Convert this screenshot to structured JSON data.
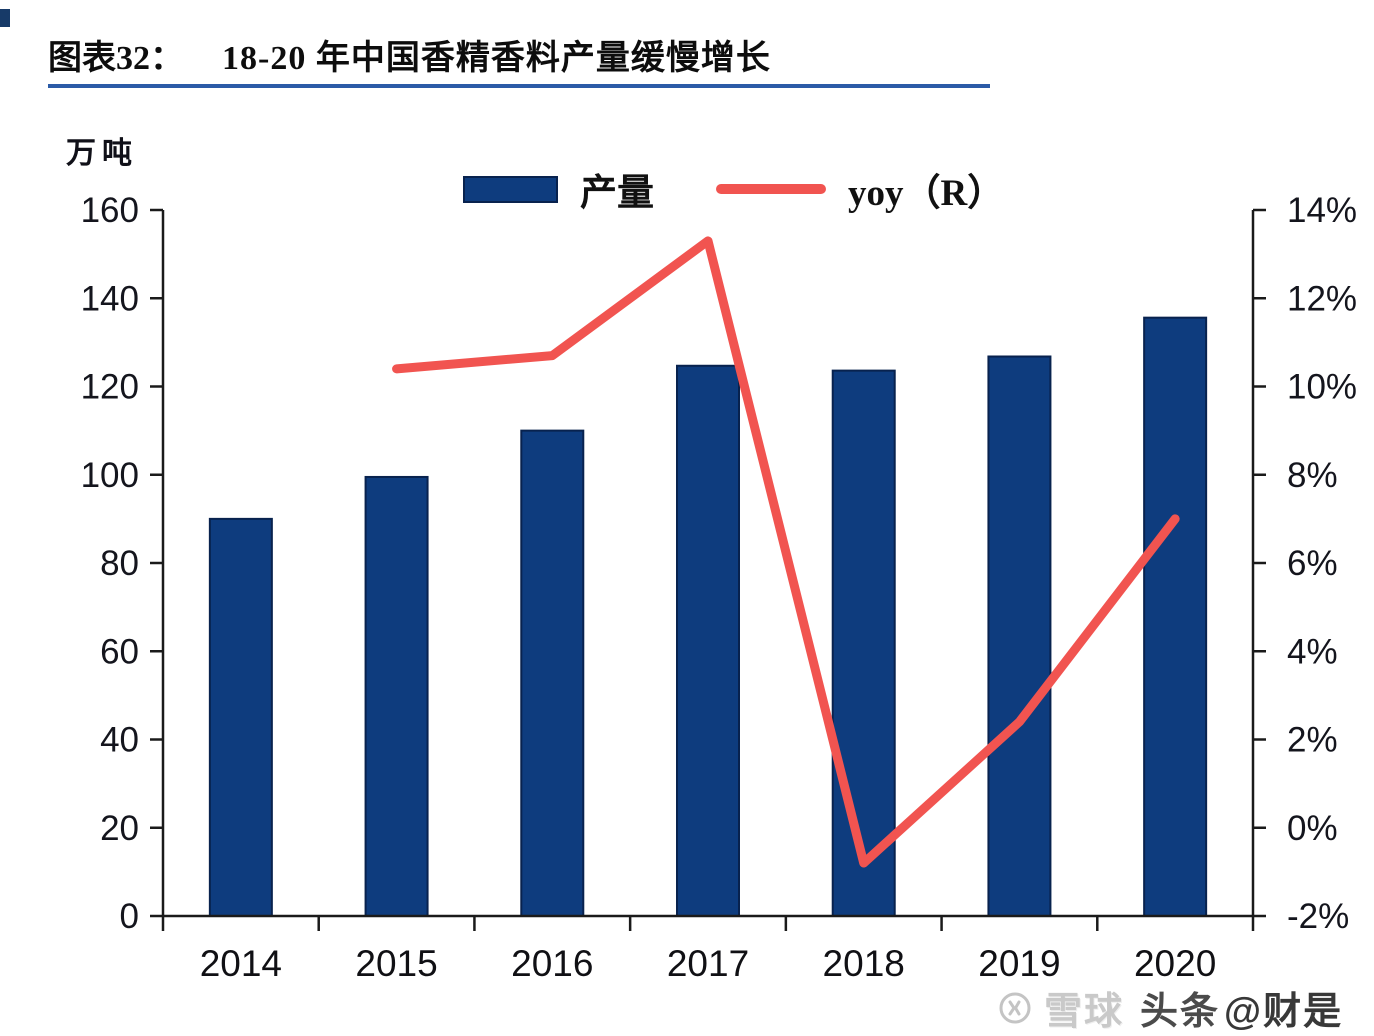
{
  "header": {
    "tag": "图表32：",
    "title": "18-20 年中国香精香料产量缓慢增长"
  },
  "chart_data": {
    "type": "bar",
    "title": "18-20 年中国香精香料产量缓慢增长",
    "categories": [
      "2014",
      "2015",
      "2016",
      "2017",
      "2018",
      "2019",
      "2020"
    ],
    "series": [
      {
        "name": "产量",
        "type": "bar",
        "axis": "left",
        "color": "#0e3c7e",
        "border_color": "#08224e",
        "values": [
          90,
          99.5,
          110,
          124.7,
          123.6,
          126.8,
          135.6
        ]
      },
      {
        "name": "yoy（R）",
        "type": "line",
        "axis": "right",
        "color": "#f15450",
        "unit": "%",
        "values": [
          null,
          10.4,
          10.7,
          13.3,
          -0.8,
          2.4,
          7.0
        ]
      }
    ],
    "left_axis": {
      "label": "万吨",
      "min": 0,
      "max": 160,
      "step": 20,
      "tick_labels": [
        "0",
        "20",
        "40",
        "60",
        "80",
        "100",
        "120",
        "140",
        "160"
      ]
    },
    "right_axis": {
      "min": -2,
      "max": 14,
      "step": 2,
      "tick_labels": [
        "-2%",
        "0%",
        "2%",
        "4%",
        "6%",
        "8%",
        "10%",
        "12%",
        "14%"
      ]
    },
    "legend_position": "top",
    "grid": false
  },
  "legend": {
    "items": [
      {
        "label": "产量",
        "swatch": "bar-swatch",
        "color": "#0e3c7e"
      },
      {
        "label": "yoy（R）",
        "swatch": "line-swatch",
        "color": "#f15450"
      }
    ]
  },
  "watermark": {
    "icon": "xueqiu-logo-icon",
    "site": "雪球",
    "channel": "头条",
    "author": "@财是"
  },
  "colors": {
    "accent_bar": "#173a68",
    "title_underline": "#2b5ba7",
    "axis": "#1a1a1a",
    "bar": "#0e3c7e",
    "bar_border": "#08224e",
    "line": "#f15450",
    "tick_text": "#14151d"
  }
}
